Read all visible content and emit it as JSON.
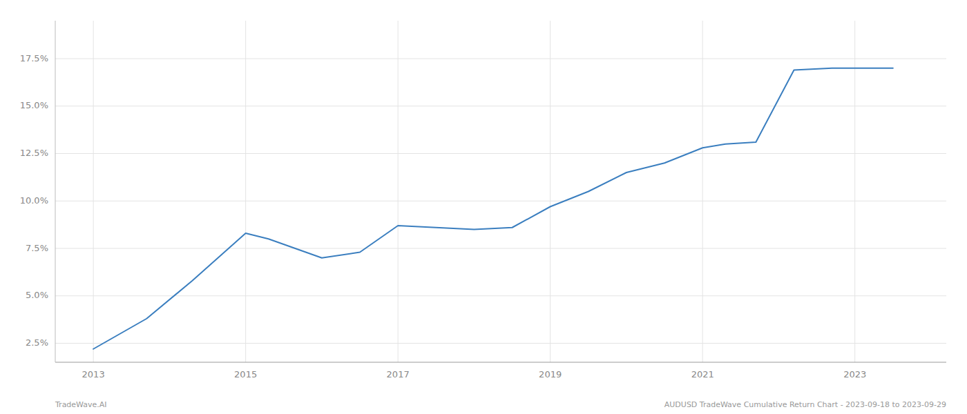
{
  "chart_data": {
    "type": "line",
    "x": [
      2013.0,
      2013.7,
      2014.3,
      2015.0,
      2015.3,
      2016.0,
      2016.5,
      2017.0,
      2017.5,
      2018.0,
      2018.5,
      2019.0,
      2019.5,
      2020.0,
      2020.5,
      2021.0,
      2021.3,
      2021.7,
      2022.2,
      2022.7,
      2023.0,
      2023.5
    ],
    "values": [
      2.2,
      3.8,
      5.8,
      8.3,
      8.0,
      7.0,
      7.3,
      8.7,
      8.6,
      8.5,
      8.6,
      9.7,
      10.5,
      11.5,
      12.0,
      12.8,
      13.0,
      13.1,
      16.9,
      17.0,
      17.0,
      17.0
    ],
    "color": "#3a7ebf",
    "xlim": [
      2012.5,
      2024.2
    ],
    "ylim": [
      1.5,
      19.5
    ],
    "xticks": [
      2013,
      2015,
      2017,
      2019,
      2021,
      2023
    ],
    "yticks": [
      {
        "value": 2.5,
        "label": "2.5%"
      },
      {
        "value": 5.0,
        "label": "5.0%"
      },
      {
        "value": 7.5,
        "label": "7.5%"
      },
      {
        "value": 10.0,
        "label": "10.0%"
      },
      {
        "value": 12.5,
        "label": "12.5%"
      },
      {
        "value": 15.0,
        "label": "15.0%"
      },
      {
        "value": 17.5,
        "label": "17.5%"
      }
    ],
    "grid": true,
    "annotations": [
      "TradeWave.AI",
      "AUDUSD TradeWave Cumulative Return Chart - 2023-09-18 to 2023-09-29"
    ]
  }
}
